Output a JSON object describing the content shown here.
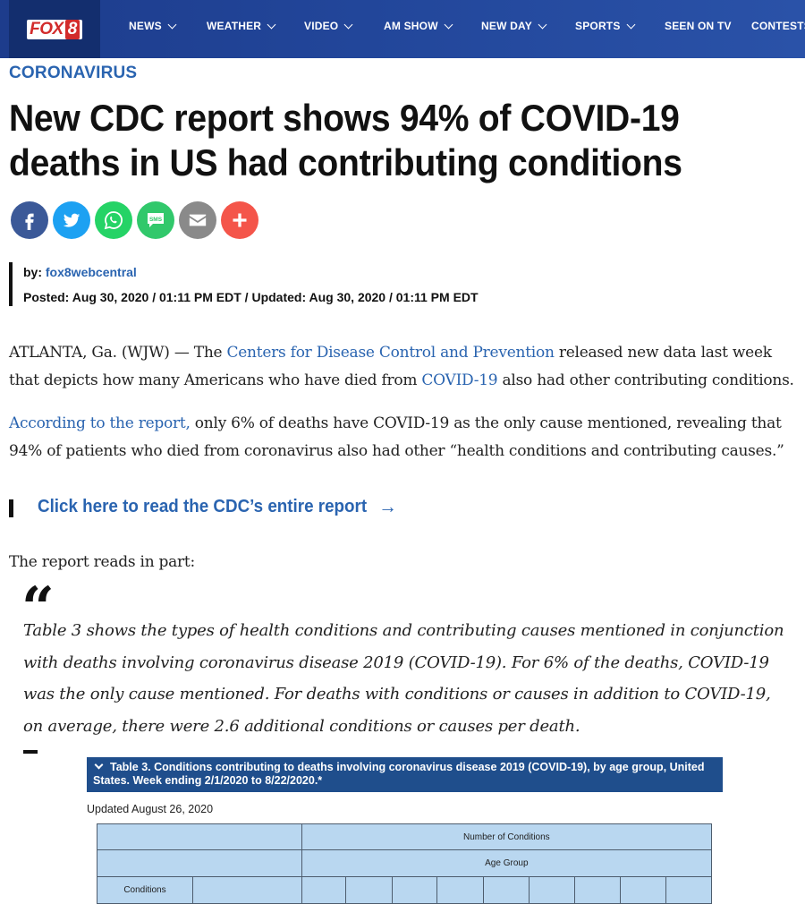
{
  "nav": {
    "logo_fox": "FOX",
    "logo_num": "8",
    "items": [
      {
        "label": "NEWS",
        "dropdown": true
      },
      {
        "label": "WEATHER",
        "dropdown": true
      },
      {
        "label": "VIDEO",
        "dropdown": true
      },
      {
        "label": "AM SHOW",
        "dropdown": true
      },
      {
        "label": "NEW DAY",
        "dropdown": true
      },
      {
        "label": "SPORTS",
        "dropdown": true
      },
      {
        "label": "SEEN ON TV",
        "dropdown": false
      },
      {
        "label": "CONTESTS",
        "dropdown": false
      }
    ]
  },
  "article": {
    "category": "CORONAVIRUS",
    "headline": "New CDC report shows 94% of COVID-19 deaths in US had contributing conditions",
    "share": [
      {
        "icon": "facebook-icon",
        "color": "#3b5998"
      },
      {
        "icon": "twitter-icon",
        "color": "#1da1f2"
      },
      {
        "icon": "whatsapp-icon",
        "color": "#25d366"
      },
      {
        "icon": "sms-icon",
        "color": "#31c86b"
      },
      {
        "icon": "email-icon",
        "color": "#8a8a8a"
      },
      {
        "icon": "plus-icon",
        "color": "#f4554a"
      }
    ],
    "byline_prefix": "by:",
    "author": "fox8webcentral",
    "dates": "Posted: Aug 30, 2020 / 01:11 PM EDT / Updated: Aug 30, 2020 / 01:11 PM EDT",
    "p1": {
      "a": "ATLANTA, Ga. (WJW) — The ",
      "link1": "Centers for Disease Control and Prevention",
      "b": " released new data last week that depicts how many Americans who have died from ",
      "link2": "COVID-19",
      "c": " also had other contributing conditions."
    },
    "p2": {
      "link": "According to the report,",
      "text": " only 6% of deaths have COVID-19 as the only cause mentioned, revealing that 94% of patients who died from coronavirus also had other “health conditions and contributing causes.”"
    },
    "cta_label": "Click here to read the CDC’s entire report",
    "cta_arrow": "→",
    "p3": "The report reads in part:",
    "quote_mark": "“",
    "quote": "Table 3 shows the types of health conditions and contributing causes mentioned in conjunction with deaths involving coronavirus disease 2019 (COVID-19). For 6% of the deaths, COVID-19 was the only cause mentioned. For deaths with conditions or causes in addition to COVID-19, on average, there were 2.6 additional conditions or causes per death."
  },
  "table_image": {
    "caption": "Table 3. Conditions contributing to deaths involving coronavirus disease 2019 (COVID-19), by age group, United States. Week ending 2/1/2020 to 8/22/2020.*",
    "updated": "Updated August 26, 2020",
    "header_number": "Number of Conditions",
    "header_age": "Age Group",
    "header_conditions": "Conditions"
  }
}
